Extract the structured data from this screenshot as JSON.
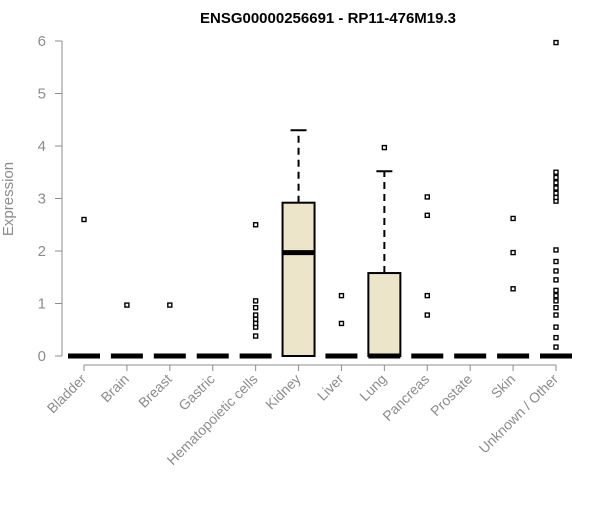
{
  "chart_data": {
    "type": "box",
    "title": "ENSG00000256691 - RP11-476M19.3",
    "xlabel": "",
    "ylabel": "Expression",
    "ylim": [
      0,
      6
    ],
    "yticks": [
      "0",
      "1",
      "2",
      "3",
      "4",
      "5",
      "6"
    ],
    "grid": false,
    "box_fill": "#ede5c9",
    "box_stroke": "#000000",
    "categories": [
      "Bladder",
      "Brain",
      "Breast",
      "Gastric",
      "Hematopoietic cells",
      "Kidney",
      "Liver",
      "Lung",
      "Pancreas",
      "Prostate",
      "Skin",
      "Unknown / Other"
    ],
    "boxes": [
      {
        "name": "Bladder",
        "q1": 0,
        "median": 0,
        "q3": 0,
        "whisker_low": 0,
        "whisker_high": 0,
        "outliers": [
          2.6
        ]
      },
      {
        "name": "Brain",
        "q1": 0,
        "median": 0,
        "q3": 0,
        "whisker_low": 0,
        "whisker_high": 0,
        "outliers": [
          0.97
        ]
      },
      {
        "name": "Breast",
        "q1": 0,
        "median": 0,
        "q3": 0,
        "whisker_low": 0,
        "whisker_high": 0,
        "outliers": [
          0.97
        ]
      },
      {
        "name": "Gastric",
        "q1": 0,
        "median": 0,
        "q3": 0,
        "whisker_low": 0,
        "whisker_high": 0,
        "outliers": []
      },
      {
        "name": "Hematopoietic cells",
        "q1": 0,
        "median": 0,
        "q3": 0,
        "whisker_low": 0,
        "whisker_high": 0,
        "outliers": [
          0.38,
          0.55,
          0.62,
          0.7,
          0.78,
          0.92,
          1.05,
          2.5
        ]
      },
      {
        "name": "Kidney",
        "q1": 0,
        "median": 1.97,
        "q3": 2.92,
        "whisker_low": 0,
        "whisker_high": 4.3,
        "outliers": []
      },
      {
        "name": "Liver",
        "q1": 0,
        "median": 0,
        "q3": 0,
        "whisker_low": 0,
        "whisker_high": 0,
        "outliers": [
          0.62,
          1.15
        ]
      },
      {
        "name": "Lung",
        "q1": 0,
        "median": 0,
        "q3": 1.58,
        "whisker_low": 0,
        "whisker_high": 3.52,
        "outliers": [
          3.97
        ]
      },
      {
        "name": "Pancreas",
        "q1": 0,
        "median": 0,
        "q3": 0,
        "whisker_low": 0,
        "whisker_high": 0,
        "outliers": [
          0.78,
          1.15,
          2.68,
          3.03
        ]
      },
      {
        "name": "Prostate",
        "q1": 0,
        "median": 0,
        "q3": 0,
        "whisker_low": 0,
        "whisker_high": 0,
        "outliers": []
      },
      {
        "name": "Skin",
        "q1": 0,
        "median": 0,
        "q3": 0,
        "whisker_low": 0,
        "whisker_high": 0,
        "outliers": [
          1.28,
          1.97,
          2.62
        ]
      },
      {
        "name": "Unknown / Other",
        "q1": 0,
        "median": 0,
        "q3": 0,
        "whisker_low": 0,
        "whisker_high": 0,
        "outliers": [
          0.17,
          0.35,
          0.55,
          0.78,
          0.92,
          1.05,
          1.15,
          1.25,
          1.45,
          1.62,
          1.8,
          2.02,
          2.95,
          3.02,
          3.1,
          3.2,
          3.3,
          3.4,
          3.5,
          5.97
        ]
      }
    ]
  }
}
